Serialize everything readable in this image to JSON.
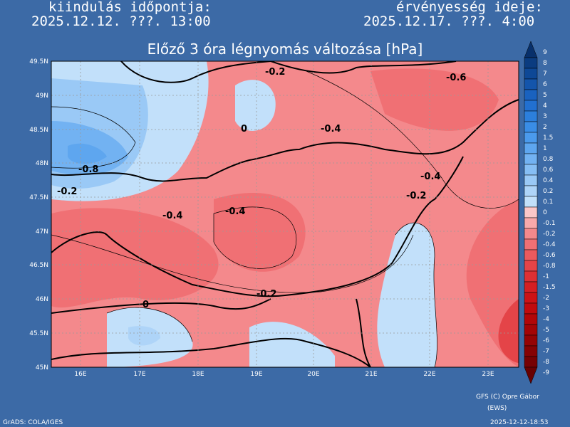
{
  "header": {
    "left_label": "kiindulás időpontja:",
    "left_value": "2025.12.12. ???. 13:00",
    "right_label": "érvényesség ideje:",
    "right_value": "2025.12.17. ???. 4:00"
  },
  "title": "Előző 3 óra légnyomás változása [hPa]",
  "lat_labels": [
    "49.5N",
    "49N",
    "48.5N",
    "48N",
    "47.5N",
    "47N",
    "46.5N",
    "46N",
    "45.5N",
    "45N"
  ],
  "lon_labels": [
    "16E",
    "17E",
    "18E",
    "19E",
    "20E",
    "21E",
    "22E",
    "23E"
  ],
  "colorbar": [
    {
      "label": "9",
      "color": "#08306b"
    },
    {
      "label": "8",
      "color": "#0b3c80"
    },
    {
      "label": "7",
      "color": "#0e4896"
    },
    {
      "label": "6",
      "color": "#1455ab"
    },
    {
      "label": "5",
      "color": "#1a62bf"
    },
    {
      "label": "4",
      "color": "#2270d0"
    },
    {
      "label": "3",
      "color": "#2c7fdc"
    },
    {
      "label": "2",
      "color": "#3a8de6"
    },
    {
      "label": "1.5",
      "color": "#4b9aec"
    },
    {
      "label": "1",
      "color": "#5ea6ef"
    },
    {
      "label": "0.8",
      "color": "#72b2f2"
    },
    {
      "label": "0.6",
      "color": "#86bef4"
    },
    {
      "label": "0.4",
      "color": "#9ac9f6"
    },
    {
      "label": "0.2",
      "color": "#aed4f8"
    },
    {
      "label": "0.1",
      "color": "#c2e0fa"
    },
    {
      "label": "0",
      "color": "#fbc7c8"
    },
    {
      "label": "-0.1",
      "color": "#f8a9ab"
    },
    {
      "label": "-0.2",
      "color": "#f4898c"
    },
    {
      "label": "-0.4",
      "color": "#f07074"
    },
    {
      "label": "-0.6",
      "color": "#ea5a5e"
    },
    {
      "label": "-0.8",
      "color": "#e44448"
    },
    {
      "label": "-1",
      "color": "#dd3034"
    },
    {
      "label": "-1.5",
      "color": "#d51f23"
    },
    {
      "label": "-2",
      "color": "#cc1215"
    },
    {
      "label": "-3",
      "color": "#c00a0d"
    },
    {
      "label": "-4",
      "color": "#b20608"
    },
    {
      "label": "-5",
      "color": "#a30406"
    },
    {
      "label": "-6",
      "color": "#940305"
    },
    {
      "label": "-7",
      "color": "#850204"
    },
    {
      "label": "-8",
      "color": "#760103"
    },
    {
      "label": "-9",
      "color": "#680102"
    }
  ],
  "contour_labels": [
    "-0.2",
    "-0.6",
    "0",
    "-0.4",
    "-0.8",
    "-0.2",
    "-0.4",
    "-0.4",
    "-0.4",
    "-0.2",
    "-0.2",
    "0"
  ],
  "credits": "GFS (C) Opre Gábor",
  "credits_sub": "(EWS)",
  "footer_left": "GrADS: COLA/IGES",
  "footer_right": "2025-12-12-18:53"
}
